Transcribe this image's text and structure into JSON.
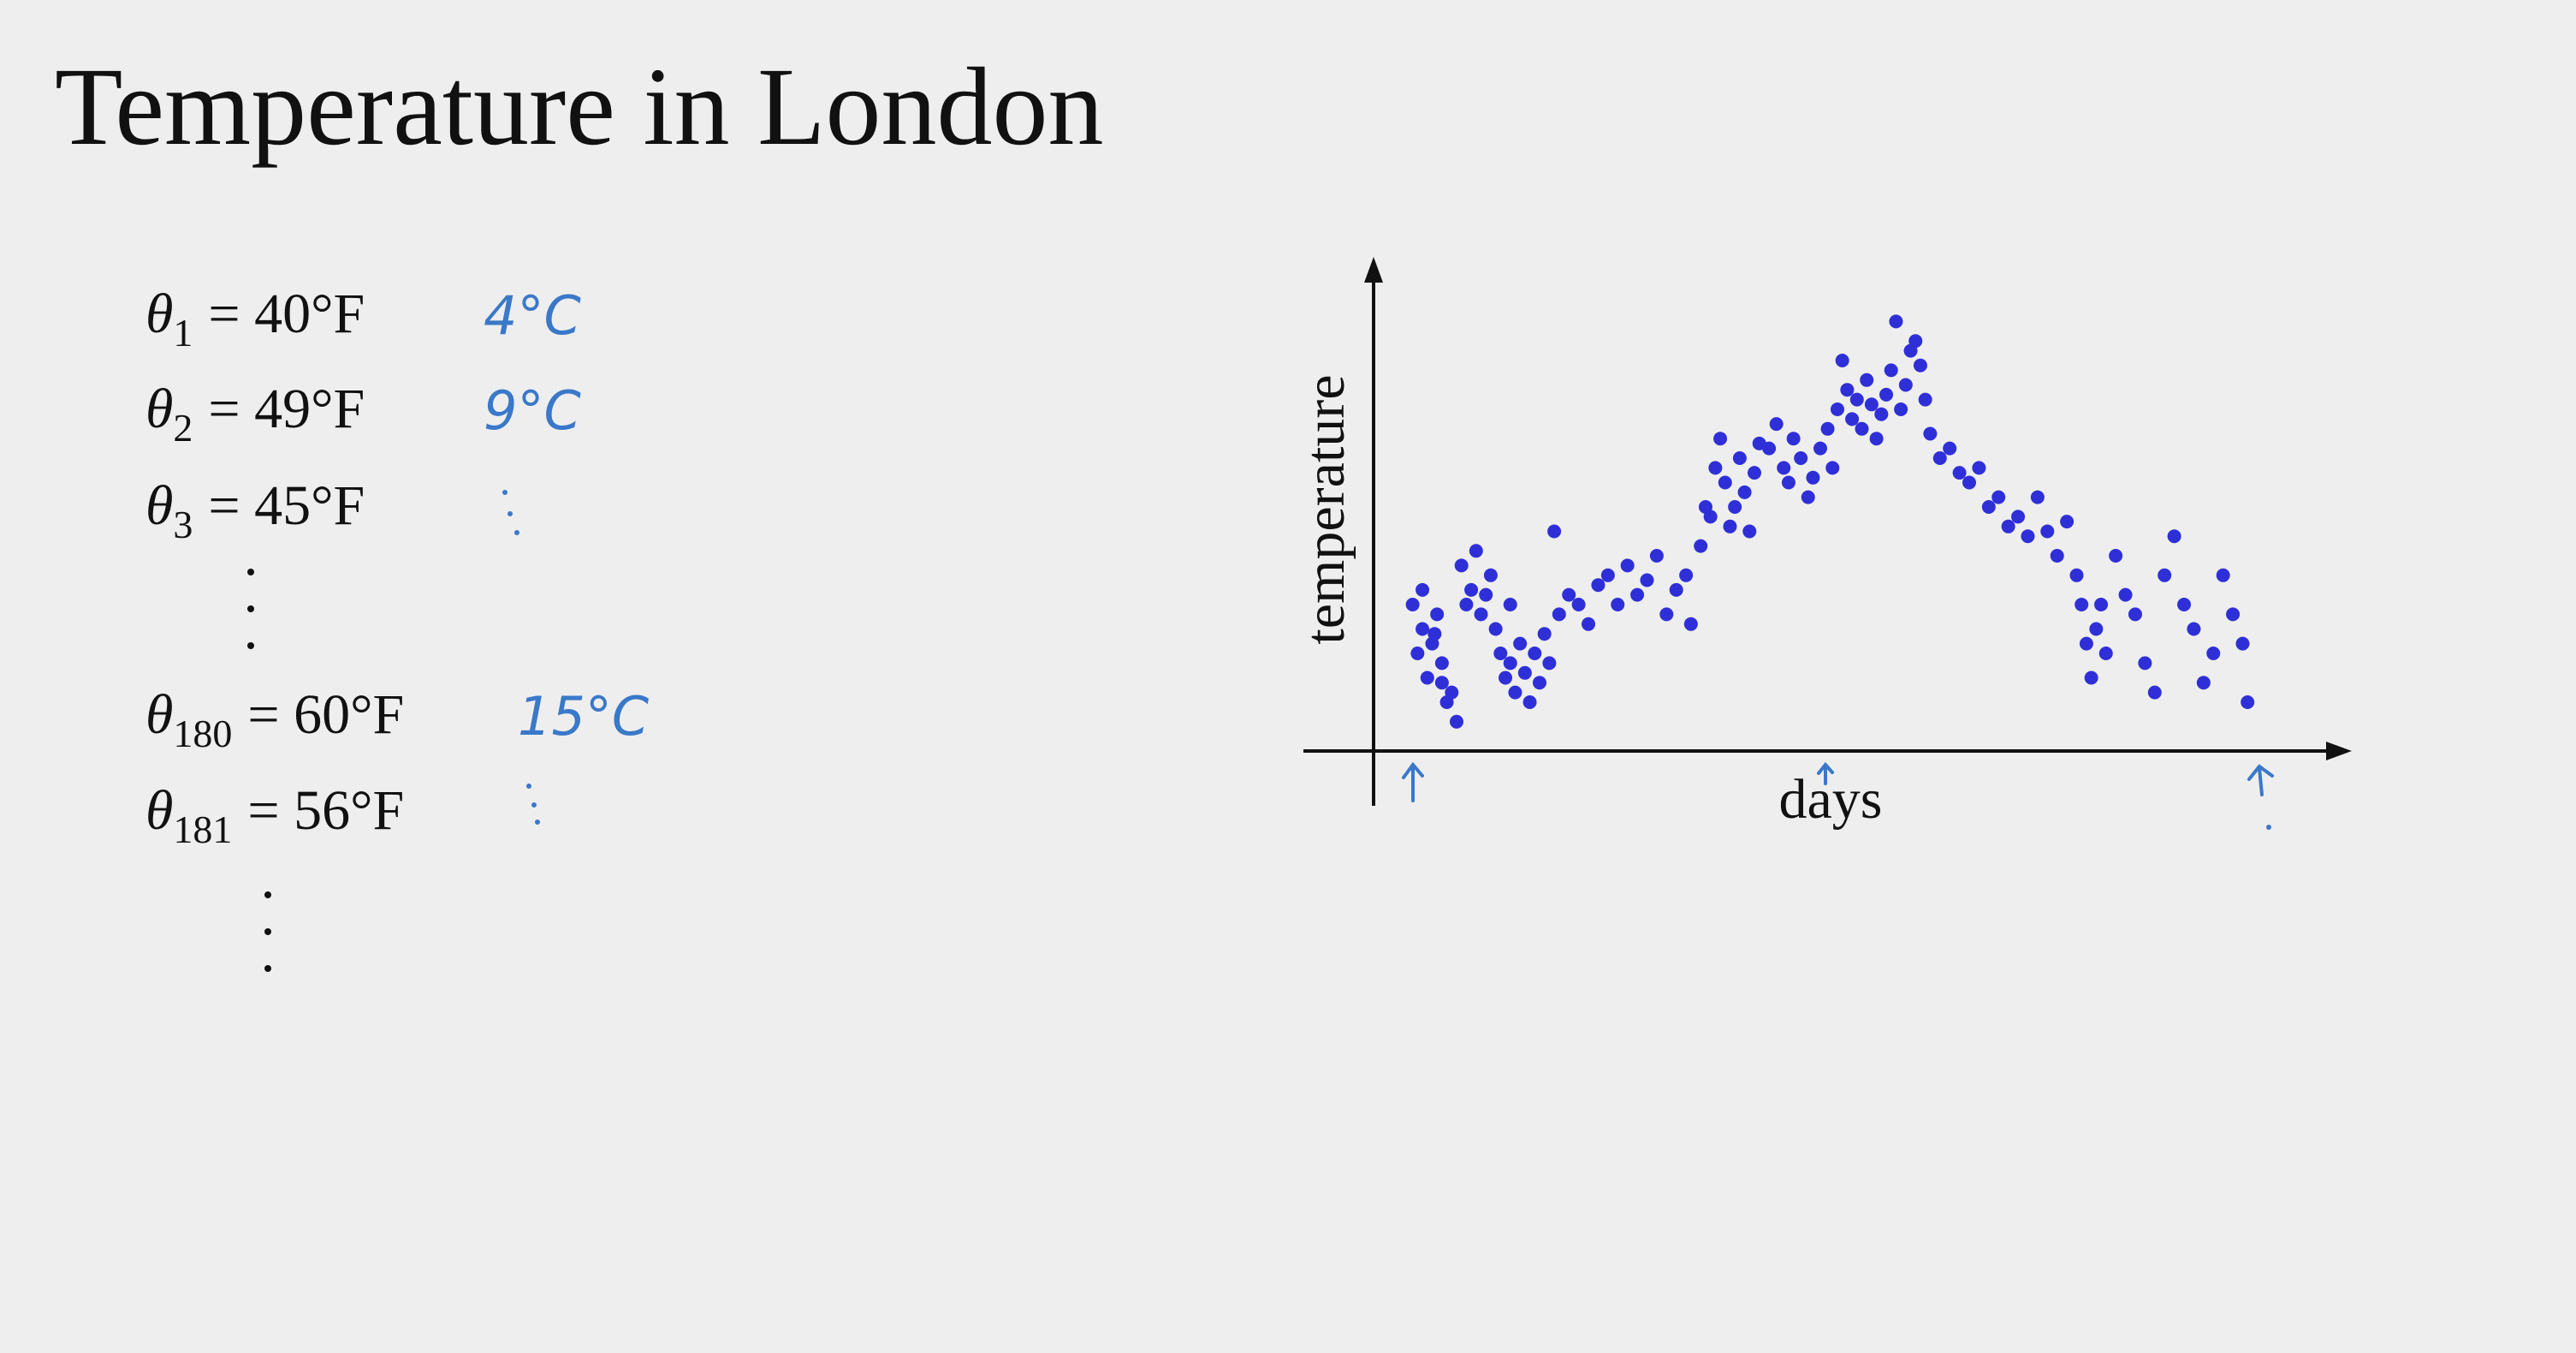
{
  "title": "Temperature in London",
  "equations": [
    {
      "symbol": "θ",
      "subscript": "1",
      "value": "= 40°F",
      "note": "4°C"
    },
    {
      "symbol": "θ",
      "subscript": "2",
      "value": "= 49°F",
      "note": "9°C"
    },
    {
      "symbol": "θ",
      "subscript": "3",
      "value": "= 45°F"
    },
    {
      "symbol": "θ",
      "subscript": "180",
      "value": "= 60°F",
      "note": "15°C"
    },
    {
      "symbol": "θ",
      "subscript": "181",
      "value": "= 56°F"
    }
  ],
  "chart_data": {
    "type": "scatter",
    "x_label": "days",
    "y_label": "temperature",
    "color": "#2f2fd8",
    "xlim": [
      0,
      400
    ],
    "ylim": [
      0,
      100
    ],
    "x": [
      16,
      18,
      20,
      22,
      24,
      26,
      28,
      30,
      32,
      34,
      20,
      25,
      28,
      36,
      38,
      40,
      42,
      44,
      46,
      48,
      50,
      52,
      54,
      56,
      58,
      60,
      62,
      64,
      66,
      68,
      70,
      72,
      74,
      56,
      76,
      80,
      84,
      88,
      92,
      96,
      100,
      104,
      108,
      112,
      116,
      120,
      124,
      128,
      130,
      134,
      136,
      138,
      140,
      142,
      144,
      146,
      148,
      150,
      152,
      154,
      156,
      158,
      162,
      165,
      168,
      170,
      172,
      175,
      178,
      180,
      183,
      186,
      188,
      190,
      192,
      194,
      196,
      198,
      200,
      202,
      204,
      206,
      208,
      210,
      212,
      214,
      216,
      218,
      220,
      222,
      224,
      226,
      228,
      232,
      236,
      240,
      244,
      248,
      252,
      256,
      260,
      264,
      268,
      272,
      276,
      280,
      284,
      288,
      290,
      292,
      294,
      296,
      298,
      300,
      304,
      308,
      312,
      316,
      320,
      324,
      328,
      332,
      336,
      340,
      344,
      348,
      352,
      356,
      358
    ],
    "values": [
      30,
      20,
      25,
      15,
      22,
      28,
      18,
      10,
      12,
      6,
      33,
      24,
      14,
      38,
      30,
      33,
      41,
      28,
      32,
      36,
      25,
      20,
      15,
      18,
      12,
      22,
      16,
      10,
      20,
      14,
      24,
      18,
      45,
      30,
      28,
      32,
      30,
      26,
      34,
      36,
      30,
      38,
      32,
      35,
      40,
      28,
      33,
      36,
      26,
      42,
      50,
      48,
      58,
      64,
      55,
      46,
      50,
      60,
      53,
      45,
      57,
      63,
      62,
      67,
      58,
      55,
      64,
      60,
      52,
      56,
      62,
      66,
      58,
      70,
      80,
      74,
      68,
      72,
      66,
      76,
      71,
      64,
      69,
      73,
      78,
      88,
      70,
      75,
      82,
      84,
      79,
      72,
      65,
      60,
      62,
      57,
      55,
      58,
      50,
      52,
      46,
      48,
      44,
      52,
      45,
      40,
      47,
      36,
      30,
      22,
      15,
      25,
      30,
      20,
      40,
      32,
      28,
      18,
      12,
      36,
      44,
      30,
      25,
      14,
      20,
      36,
      28,
      22,
      10
    ]
  }
}
